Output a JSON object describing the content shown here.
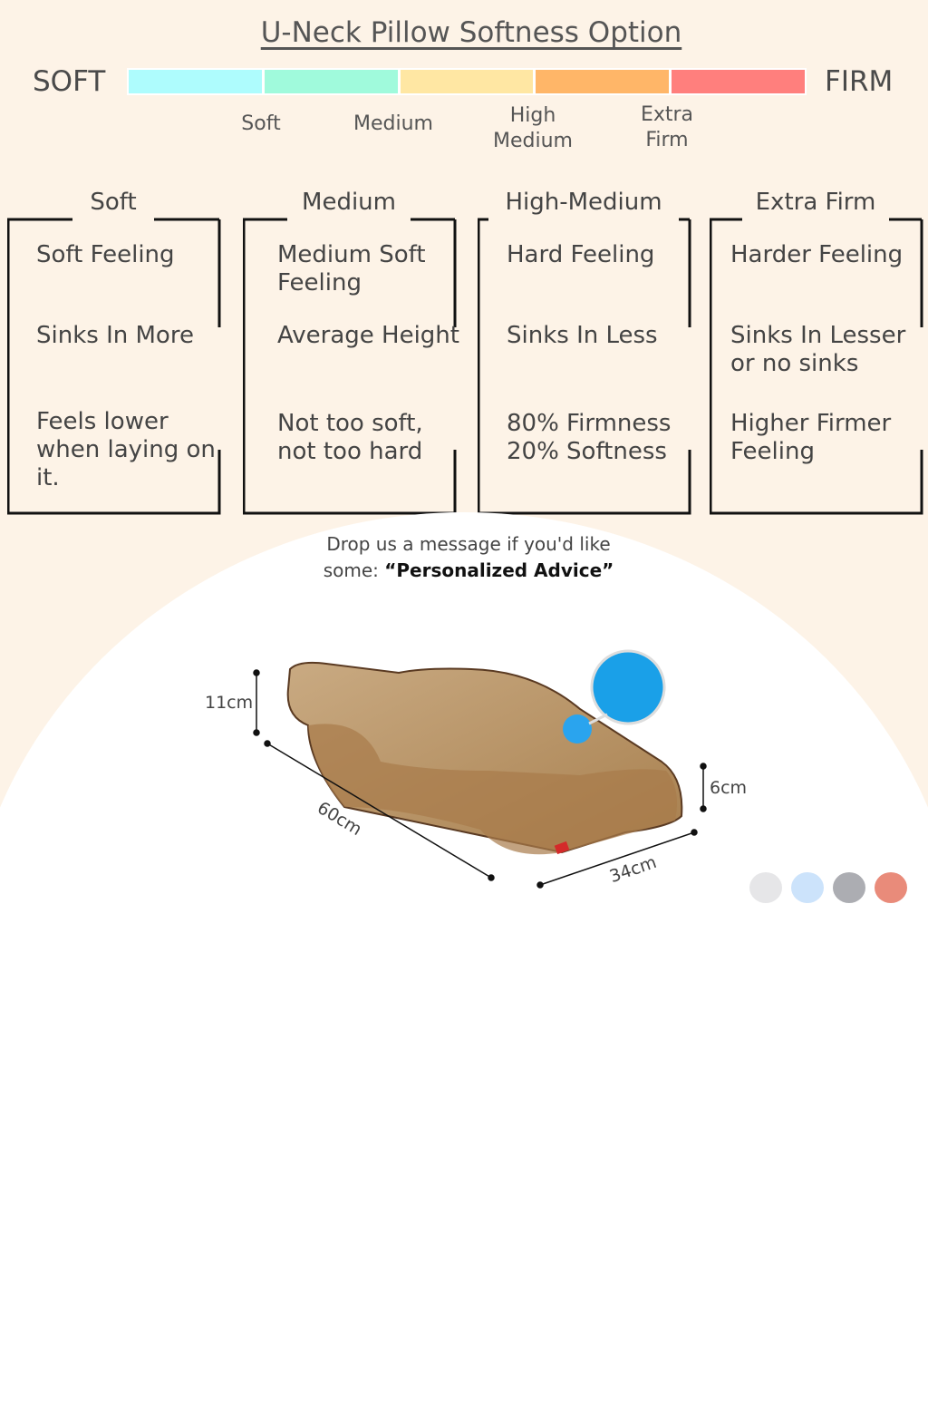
{
  "title": "U-Neck Pillow Softness Option",
  "scale": {
    "left_label": "SOFT",
    "right_label": "FIRM",
    "colors": [
      "#aefcfd",
      "#a0fadc",
      "#ffe7a3",
      "#ffb668",
      "#ff7f7d"
    ],
    "levels": [
      "Soft",
      "Medium",
      "High\nMedium",
      "Extra\nFirm"
    ]
  },
  "options": [
    {
      "title": "Soft",
      "items": [
        "Soft Feeling",
        "Sinks In More",
        "Feels lower when laying on it."
      ]
    },
    {
      "title": "Medium",
      "items": [
        "Medium Soft Feeling",
        "Average Height",
        "Not too soft, not too hard"
      ]
    },
    {
      "title": "High-Medium",
      "items": [
        "Hard Feeling",
        "Sinks In Less",
        "80% Firmness 20% Softness"
      ]
    },
    {
      "title": "Extra Firm",
      "items": [
        "Harder Feeling",
        "Sinks In Lesser or no sinks",
        "Higher Firmer Feeling"
      ]
    }
  ],
  "message": {
    "line1": "Drop us a message if you'd like",
    "prefix": "some: ",
    "highlight": "“Personalized Advice”"
  },
  "dimensions": {
    "height_back": "11cm",
    "length": "60cm",
    "height_front": "6cm",
    "width": "34cm"
  },
  "color_options": [
    "#e6e6e8",
    "#cce3fb",
    "#acadb2",
    "#e98b7a"
  ]
}
